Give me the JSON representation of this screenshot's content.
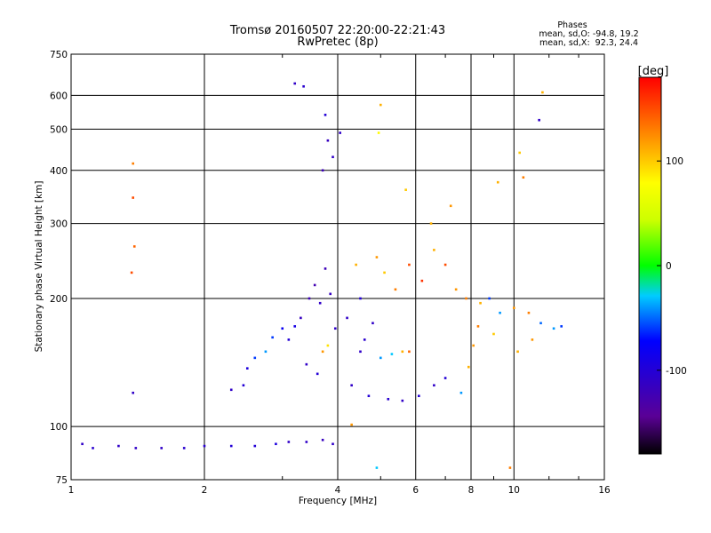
{
  "chart_data": {
    "type": "scatter",
    "title": "Tromsø 20160507 22:20:00-22:21:43",
    "subtitle": "RwPretec (8p)",
    "xlabel": "Frequency [MHz]",
    "ylabel": "Stationary phase Virtual Height [km]",
    "xscale": "log",
    "yscale": "log",
    "xlim": [
      1,
      16
    ],
    "ylim": [
      75,
      750
    ],
    "xticks": [
      1,
      2,
      4,
      6,
      8,
      10,
      16
    ],
    "yticks": [
      75,
      100,
      200,
      300,
      400,
      500,
      600,
      750
    ],
    "grid": true,
    "phases_box": {
      "heading": "Phases",
      "line_o": "mean, sd,O: -94.8, 19.2",
      "line_x": "mean, sd,X:  92.3, 24.4"
    },
    "colorbar": {
      "label": "[deg]",
      "range": [
        -180,
        180
      ],
      "ticks": [
        100,
        0,
        -100
      ],
      "colormap": "rainbow"
    },
    "series": [
      {
        "values": [
          {
            "x": 1.06,
            "y": 91,
            "p": -110
          },
          {
            "x": 1.12,
            "y": 89,
            "p": -105
          },
          {
            "x": 1.28,
            "y": 90,
            "p": -110
          },
          {
            "x": 1.4,
            "y": 89,
            "p": -110
          },
          {
            "x": 1.6,
            "y": 89,
            "p": -110
          },
          {
            "x": 1.8,
            "y": 89,
            "p": -105
          },
          {
            "x": 2.0,
            "y": 90,
            "p": -105
          },
          {
            "x": 2.3,
            "y": 90,
            "p": -100
          },
          {
            "x": 2.6,
            "y": 90,
            "p": -100
          },
          {
            "x": 2.9,
            "y": 91,
            "p": -95
          },
          {
            "x": 3.1,
            "y": 92,
            "p": -110
          },
          {
            "x": 3.4,
            "y": 92,
            "p": -110
          },
          {
            "x": 3.7,
            "y": 93,
            "p": -115
          },
          {
            "x": 3.9,
            "y": 91,
            "p": -110
          },
          {
            "x": 2.3,
            "y": 122,
            "p": -110
          },
          {
            "x": 2.45,
            "y": 125,
            "p": -100
          },
          {
            "x": 2.5,
            "y": 137,
            "p": -95
          },
          {
            "x": 2.6,
            "y": 145,
            "p": -60
          },
          {
            "x": 2.75,
            "y": 150,
            "p": -40
          },
          {
            "x": 2.85,
            "y": 162,
            "p": -60
          },
          {
            "x": 3.0,
            "y": 170,
            "p": -80
          },
          {
            "x": 3.1,
            "y": 160,
            "p": -100
          },
          {
            "x": 3.2,
            "y": 172,
            "p": -90
          },
          {
            "x": 3.3,
            "y": 180,
            "p": -115
          },
          {
            "x": 3.45,
            "y": 200,
            "p": -120
          },
          {
            "x": 3.55,
            "y": 215,
            "p": -125
          },
          {
            "x": 3.65,
            "y": 195,
            "p": -110
          },
          {
            "x": 3.75,
            "y": 235,
            "p": -120
          },
          {
            "x": 3.85,
            "y": 205,
            "p": -115
          },
          {
            "x": 3.4,
            "y": 140,
            "p": -110
          },
          {
            "x": 3.6,
            "y": 133,
            "p": -100
          },
          {
            "x": 3.7,
            "y": 150,
            "p": 120
          },
          {
            "x": 3.8,
            "y": 155,
            "p": 90
          },
          {
            "x": 3.95,
            "y": 170,
            "p": -110
          },
          {
            "x": 3.2,
            "y": 640,
            "p": -110
          },
          {
            "x": 3.35,
            "y": 630,
            "p": -105
          },
          {
            "x": 3.75,
            "y": 540,
            "p": -100
          },
          {
            "x": 3.8,
            "y": 470,
            "p": -115
          },
          {
            "x": 3.9,
            "y": 430,
            "p": -110
          },
          {
            "x": 4.05,
            "y": 490,
            "p": -110
          },
          {
            "x": 3.7,
            "y": 400,
            "p": -120
          },
          {
            "x": 4.2,
            "y": 180,
            "p": -110
          },
          {
            "x": 4.5,
            "y": 200,
            "p": -100
          },
          {
            "x": 4.8,
            "y": 175,
            "p": -110
          },
          {
            "x": 4.6,
            "y": 160,
            "p": -105
          },
          {
            "x": 4.5,
            "y": 150,
            "p": -110
          },
          {
            "x": 5.0,
            "y": 145,
            "p": -40
          },
          {
            "x": 5.3,
            "y": 148,
            "p": -30
          },
          {
            "x": 5.6,
            "y": 150,
            "p": 110
          },
          {
            "x": 5.8,
            "y": 150,
            "p": 140
          },
          {
            "x": 4.3,
            "y": 125,
            "p": -110
          },
          {
            "x": 4.7,
            "y": 118,
            "p": -100
          },
          {
            "x": 5.2,
            "y": 116,
            "p": -105
          },
          {
            "x": 5.6,
            "y": 115,
            "p": -110
          },
          {
            "x": 6.1,
            "y": 118,
            "p": -100
          },
          {
            "x": 6.6,
            "y": 125,
            "p": -110
          },
          {
            "x": 7.0,
            "y": 130,
            "p": -100
          },
          {
            "x": 7.6,
            "y": 120,
            "p": -40
          },
          {
            "x": 7.9,
            "y": 138,
            "p": 110
          },
          {
            "x": 8.1,
            "y": 155,
            "p": 120
          },
          {
            "x": 8.3,
            "y": 172,
            "p": 130
          },
          {
            "x": 4.4,
            "y": 240,
            "p": 110
          },
          {
            "x": 4.9,
            "y": 250,
            "p": 120
          },
          {
            "x": 5.1,
            "y": 230,
            "p": 100
          },
          {
            "x": 5.4,
            "y": 210,
            "p": 130
          },
          {
            "x": 5.8,
            "y": 240,
            "p": 150
          },
          {
            "x": 6.2,
            "y": 220,
            "p": 160
          },
          {
            "x": 6.6,
            "y": 260,
            "p": 110
          },
          {
            "x": 7.0,
            "y": 240,
            "p": 150
          },
          {
            "x": 7.4,
            "y": 210,
            "p": 120
          },
          {
            "x": 7.8,
            "y": 200,
            "p": 130
          },
          {
            "x": 8.4,
            "y": 195,
            "p": 110
          },
          {
            "x": 8.8,
            "y": 200,
            "p": -60
          },
          {
            "x": 9.3,
            "y": 185,
            "p": -40
          },
          {
            "x": 10.0,
            "y": 190,
            "p": 120
          },
          {
            "x": 10.8,
            "y": 185,
            "p": 130
          },
          {
            "x": 11.5,
            "y": 175,
            "p": -50
          },
          {
            "x": 12.3,
            "y": 170,
            "p": -40
          },
          {
            "x": 12.8,
            "y": 172,
            "p": -60
          },
          {
            "x": 11.0,
            "y": 160,
            "p": 120
          },
          {
            "x": 10.2,
            "y": 150,
            "p": 110
          },
          {
            "x": 9.0,
            "y": 165,
            "p": 100
          },
          {
            "x": 6.5,
            "y": 300,
            "p": 110
          },
          {
            "x": 7.2,
            "y": 330,
            "p": 120
          },
          {
            "x": 5.7,
            "y": 360,
            "p": 100
          },
          {
            "x": 1.38,
            "y": 415,
            "p": 130
          },
          {
            "x": 1.38,
            "y": 345,
            "p": 150
          },
          {
            "x": 1.39,
            "y": 265,
            "p": 140
          },
          {
            "x": 1.37,
            "y": 230,
            "p": 150
          },
          {
            "x": 1.38,
            "y": 120,
            "p": -110
          },
          {
            "x": 9.2,
            "y": 375,
            "p": 110
          },
          {
            "x": 11.6,
            "y": 610,
            "p": 110
          },
          {
            "x": 11.4,
            "y": 525,
            "p": -110
          },
          {
            "x": 10.3,
            "y": 440,
            "p": 100
          },
          {
            "x": 10.5,
            "y": 385,
            "p": 130
          },
          {
            "x": 5.0,
            "y": 570,
            "p": 110
          },
          {
            "x": 4.95,
            "y": 490,
            "p": 80
          },
          {
            "x": 4.9,
            "y": 80,
            "p": -30
          },
          {
            "x": 4.3,
            "y": 101,
            "p": 120
          },
          {
            "x": 9.8,
            "y": 80,
            "p": 130
          }
        ]
      }
    ]
  }
}
